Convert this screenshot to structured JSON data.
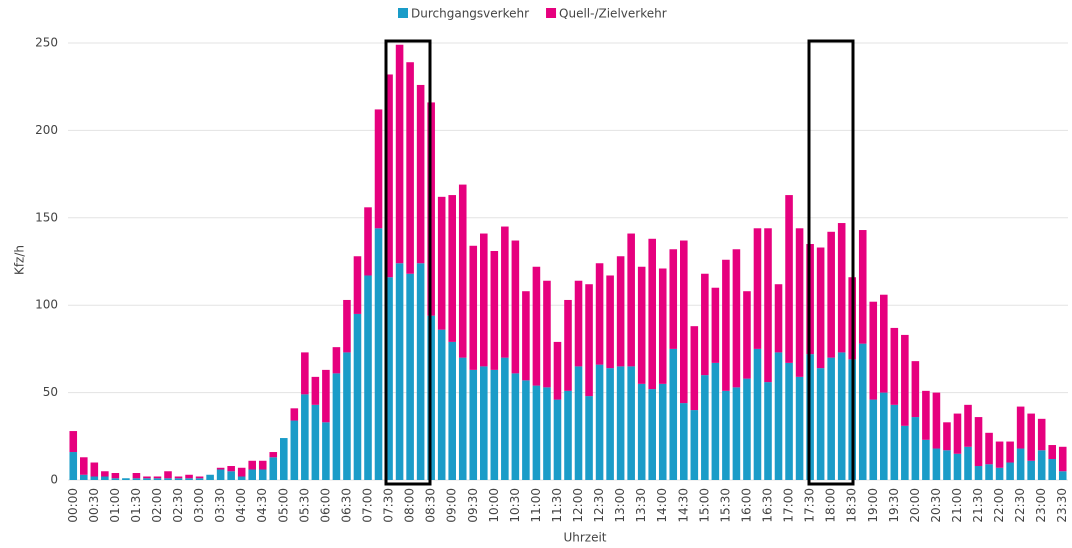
{
  "chart_data": {
    "type": "stacked_bar",
    "x_label": "Uhrzeit",
    "y_label": "Kfz/h",
    "categories": [
      "00:00",
      null,
      "00:30",
      null,
      "01:00",
      null,
      "01:30",
      null,
      "02:00",
      null,
      "02:30",
      null,
      "03:00",
      null,
      "03:30",
      null,
      "04:00",
      null,
      "04:30",
      null,
      "05:00",
      null,
      "05:30",
      null,
      "06:00",
      null,
      "06:30",
      null,
      "07:00",
      null,
      "07:30",
      null,
      "08:00",
      null,
      "08:30",
      null,
      "09:00",
      null,
      "09:30",
      null,
      "10:00",
      null,
      "10:30",
      null,
      "11:00",
      null,
      "11:30",
      null,
      "12:00",
      null,
      "12:30",
      null,
      "13:00",
      null,
      "13:30",
      null,
      "14:00",
      null,
      "14:30",
      null,
      "15:00",
      null,
      "15:30",
      null,
      "16:00",
      null,
      "16:30",
      null,
      "17:00",
      null,
      "17:30",
      null,
      "18:00",
      null,
      "18:30",
      null,
      "19:00",
      null,
      "19:30",
      null,
      "20:00",
      null,
      "20:30",
      null,
      "21:00",
      null,
      "21:30",
      null,
      "22:00",
      null,
      "22:30",
      null,
      "23:00",
      null,
      "23:30"
    ],
    "series": [
      {
        "name": "Durchgangsverkehr",
        "color": "#1a9cc8",
        "values": [
          16,
          3,
          2,
          2,
          1,
          1,
          1,
          1,
          1,
          1,
          1,
          1,
          1,
          3,
          6,
          5,
          2,
          6,
          6,
          13,
          24,
          34,
          49,
          43,
          33,
          61,
          73,
          95,
          117,
          144,
          116,
          124,
          118,
          124,
          94,
          86,
          79,
          70,
          63,
          65,
          63,
          70,
          61,
          57,
          54,
          53,
          46,
          51,
          65,
          48,
          66,
          64,
          65,
          65,
          55,
          52,
          55,
          75,
          44,
          40,
          60,
          67,
          51,
          53,
          58,
          75,
          56,
          73,
          67,
          59,
          72,
          64,
          70,
          73,
          69,
          78,
          46,
          50,
          43,
          31,
          36,
          23,
          18,
          17,
          15,
          19,
          8,
          9,
          7,
          10,
          18,
          11,
          17,
          12,
          5
        ]
      },
      {
        "name": "Quell-/Zielverkehr",
        "color": "#e6007e",
        "values": [
          12,
          10,
          8,
          3,
          3,
          0,
          3,
          1,
          1,
          4,
          1,
          2,
          1,
          0,
          1,
          3,
          5,
          5,
          5,
          3,
          0,
          7,
          24,
          16,
          30,
          15,
          30,
          33,
          39,
          68,
          116,
          125,
          121,
          102,
          122,
          76,
          84,
          99,
          71,
          76,
          68,
          75,
          76,
          51,
          68,
          61,
          33,
          52,
          49,
          64,
          58,
          53,
          63,
          76,
          67,
          86,
          66,
          57,
          93,
          48,
          58,
          43,
          75,
          79,
          50,
          69,
          88,
          39,
          96,
          85,
          63,
          69,
          72,
          74,
          47,
          65,
          56,
          56,
          44,
          52,
          32,
          28,
          32,
          16,
          23,
          24,
          28,
          18,
          15,
          12,
          24,
          27,
          18,
          8,
          14
        ]
      }
    ],
    "ylim": [
      0,
      250
    ],
    "yticks": [
      0,
      50,
      100,
      150,
      200,
      250
    ],
    "grid": true,
    "legend": "top"
  }
}
